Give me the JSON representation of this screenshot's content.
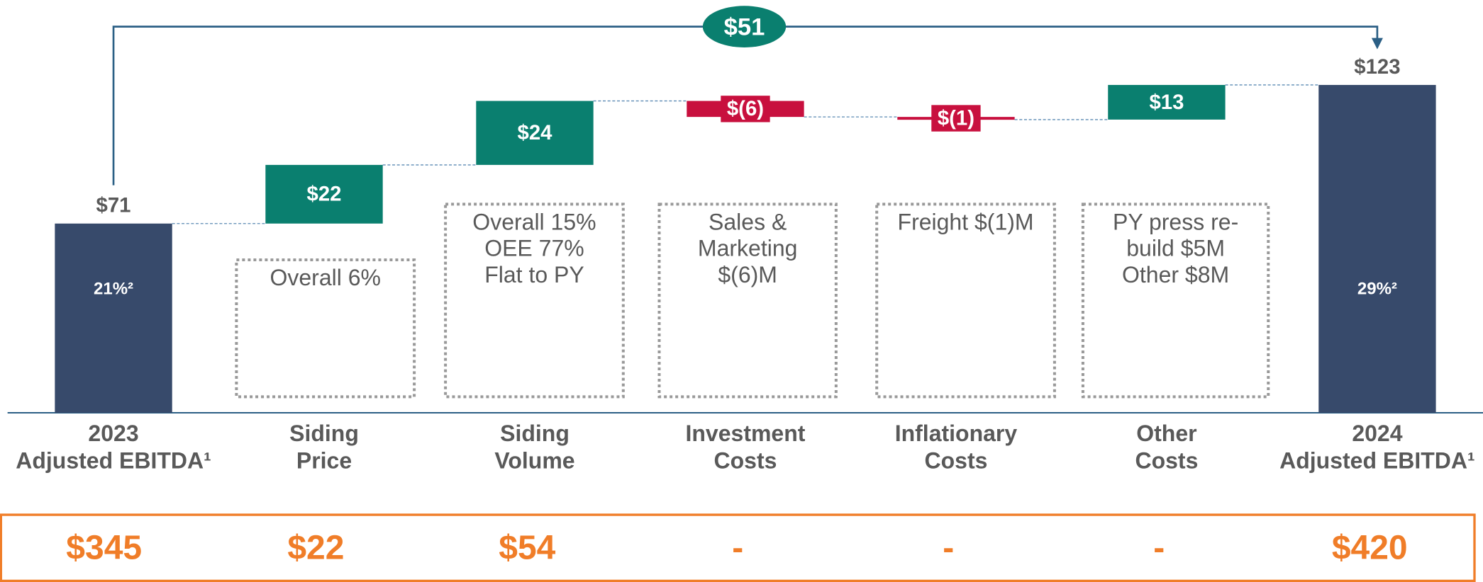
{
  "chart_data": {
    "type": "waterfall",
    "categories": [
      "2023\nAdjusted EBITDA¹",
      "Siding\nPrice",
      "Siding\nVolume",
      "Investment\nCosts",
      "Inflationary\nCosts",
      "Other\nCosts",
      "2024\nAdjusted EBITDA¹"
    ],
    "values": [
      71,
      22,
      24,
      -6,
      -1,
      13,
      123
    ],
    "value_labels": [
      "$71",
      "$22",
      "$24",
      "$(6)",
      "$(1)",
      "$13",
      "$123"
    ],
    "measures": [
      "total",
      "relative",
      "relative",
      "relative",
      "relative",
      "relative",
      "total"
    ],
    "colors": {
      "total": "#374a6b",
      "increase": "#0a7f6f",
      "decrease": "#c8103e"
    },
    "ylim": [
      0,
      130
    ],
    "bar_annotations": [
      "21%²",
      null,
      null,
      null,
      null,
      null,
      "29%²"
    ],
    "notes": [
      null,
      "Overall 6%",
      "Overall 15%\n\nOEE 77%\nFlat to PY",
      "Sales &\nMarketing\n$(6)M",
      "Freight $(1)M",
      "PY press re-\nbuild $5M\n\nOther $8M",
      null
    ],
    "change_label": "$51",
    "bottom_row": [
      "$345",
      "$22",
      "$54",
      "-",
      "-",
      "-",
      "$420"
    ]
  }
}
